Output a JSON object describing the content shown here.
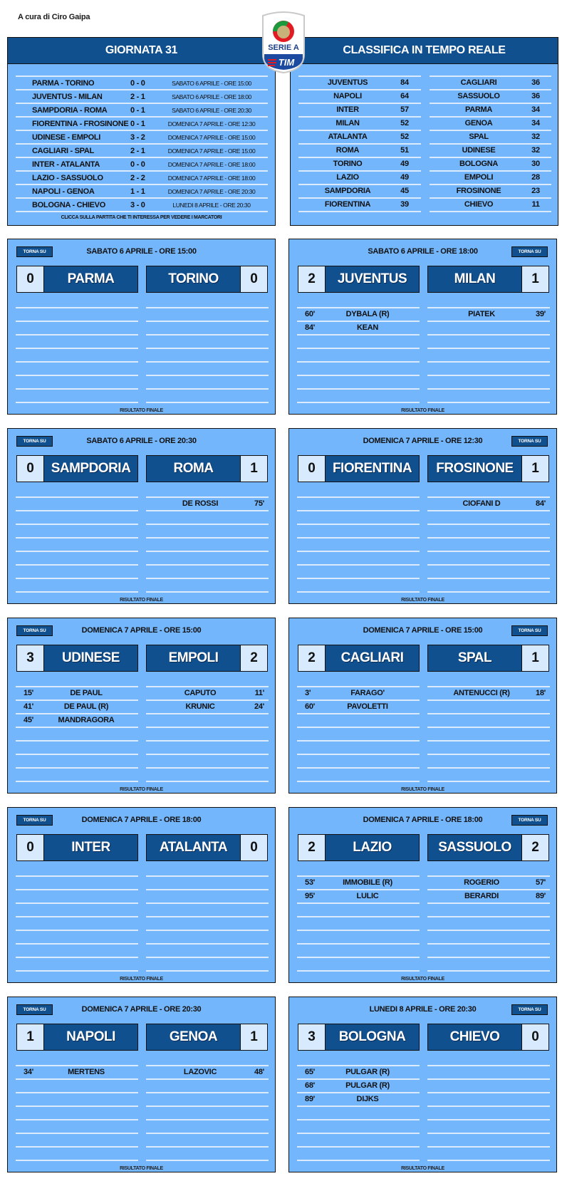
{
  "credit": "A cura di Ciro Gaipa",
  "logo": {
    "line1": "SERIE A",
    "line2": "TIM"
  },
  "colors": {
    "header": "#10508f",
    "panel": "#74b6fc",
    "score_cell": "#d8eafd"
  },
  "giornata": {
    "title": "GIORNATA 31",
    "rows": [
      {
        "match": "PARMA - TORINO",
        "score": "0 - 0",
        "date": "SABATO 6 APRILE - ORE 15:00"
      },
      {
        "match": "JUVENTUS - MILAN",
        "score": "2 - 1",
        "date": "SABATO 6 APRILE - ORE 18:00"
      },
      {
        "match": "SAMPDORIA - ROMA",
        "score": "0 - 1",
        "date": "SABATO 6 APRILE - ORE 20:30"
      },
      {
        "match": "FIORENTINA - FROSINONE",
        "score": "0 - 1",
        "date": "DOMENICA 7 APRILE - ORE 12:30"
      },
      {
        "match": "UDINESE - EMPOLI",
        "score": "3 - 2",
        "date": "DOMENICA 7 APRILE - ORE 15:00"
      },
      {
        "match": "CAGLIARI - SPAL",
        "score": "2 - 1",
        "date": "DOMENICA 7 APRILE - ORE 15:00"
      },
      {
        "match": "INTER - ATALANTA",
        "score": "0 - 0",
        "date": "DOMENICA 7 APRILE - ORE 18:00"
      },
      {
        "match": "LAZIO - SASSUOLO",
        "score": "2 - 2",
        "date": "DOMENICA 7 APRILE - ORE 18:00"
      },
      {
        "match": "NAPOLI - GENOA",
        "score": "1 - 1",
        "date": "DOMENICA 7 APRILE - ORE 20:30"
      },
      {
        "match": "BOLOGNA - CHIEVO",
        "score": "3 - 0",
        "date": "LUNEDI 8 APRILE - ORE 20:30"
      }
    ],
    "hint": "CLICCA SULLA PARTITA CHE TI INTERESSA PER VEDERE I MARCATORI"
  },
  "classifica": {
    "title": "CLASSIFICA IN TEMPO REALE",
    "left": [
      {
        "team": "JUVENTUS",
        "pts": "84"
      },
      {
        "team": "NAPOLI",
        "pts": "64"
      },
      {
        "team": "INTER",
        "pts": "57"
      },
      {
        "team": "MILAN",
        "pts": "52"
      },
      {
        "team": "ATALANTA",
        "pts": "52"
      },
      {
        "team": "ROMA",
        "pts": "51"
      },
      {
        "team": "TORINO",
        "pts": "49"
      },
      {
        "team": "LAZIO",
        "pts": "49"
      },
      {
        "team": "SAMPDORIA",
        "pts": "45"
      },
      {
        "team": "FIORENTINA",
        "pts": "39"
      }
    ],
    "right": [
      {
        "team": "CAGLIARI",
        "pts": "36"
      },
      {
        "team": "SASSUOLO",
        "pts": "36"
      },
      {
        "team": "PARMA",
        "pts": "34"
      },
      {
        "team": "GENOA",
        "pts": "34"
      },
      {
        "team": "SPAL",
        "pts": "32"
      },
      {
        "team": "UDINESE",
        "pts": "32"
      },
      {
        "team": "BOLOGNA",
        "pts": "30"
      },
      {
        "team": "EMPOLI",
        "pts": "28"
      },
      {
        "team": "FROSINONE",
        "pts": "23"
      },
      {
        "team": "CHIEVO",
        "pts": "11"
      }
    ]
  },
  "labels": {
    "torna_su": "TORNA SU",
    "final": "RISULTATO FINALE"
  },
  "matches": [
    {
      "date": "SABATO 6 APRILE - ORE 15:00",
      "home": "PARMA",
      "home_score": "0",
      "away": "TORINO",
      "away_score": "0",
      "home_scorers": [],
      "away_scorers": []
    },
    {
      "date": "SABATO 6 APRILE - ORE 18:00",
      "home": "JUVENTUS",
      "home_score": "2",
      "away": "MILAN",
      "away_score": "1",
      "home_scorers": [
        {
          "min": "60'",
          "name": "DYBALA (R)"
        },
        {
          "min": "84'",
          "name": "KEAN"
        }
      ],
      "away_scorers": [
        {
          "min": "39'",
          "name": "PIATEK"
        }
      ]
    },
    {
      "date": "SABATO 6 APRILE - ORE 20:30",
      "home": "SAMPDORIA",
      "home_score": "0",
      "away": "ROMA",
      "away_score": "1",
      "home_scorers": [],
      "away_scorers": [
        {
          "min": "75'",
          "name": "DE ROSSI"
        }
      ]
    },
    {
      "date": "DOMENICA 7 APRILE - ORE 12:30",
      "home": "FIORENTINA",
      "home_score": "0",
      "away": "FROSINONE",
      "away_score": "1",
      "home_scorers": [],
      "away_scorers": [
        {
          "min": "84'",
          "name": "CIOFANI D"
        }
      ]
    },
    {
      "date": "DOMENICA 7 APRILE - ORE 15:00",
      "home": "UDINESE",
      "home_score": "3",
      "away": "EMPOLI",
      "away_score": "2",
      "home_scorers": [
        {
          "min": "15'",
          "name": "DE PAUL"
        },
        {
          "min": "41'",
          "name": "DE PAUL (R)"
        },
        {
          "min": "45'",
          "name": "MANDRAGORA"
        }
      ],
      "away_scorers": [
        {
          "min": "11'",
          "name": "CAPUTO"
        },
        {
          "min": "24'",
          "name": "KRUNIC"
        }
      ]
    },
    {
      "date": "DOMENICA 7 APRILE - ORE 15:00",
      "home": "CAGLIARI",
      "home_score": "2",
      "away": "SPAL",
      "away_score": "1",
      "home_scorers": [
        {
          "min": "3'",
          "name": "FARAGO'"
        },
        {
          "min": "60'",
          "name": "PAVOLETTI"
        }
      ],
      "away_scorers": [
        {
          "min": "18'",
          "name": "ANTENUCCI (R)"
        }
      ]
    },
    {
      "date": "DOMENICA 7 APRILE - ORE 18:00",
      "home": "INTER",
      "home_score": "0",
      "away": "ATALANTA",
      "away_score": "0",
      "home_scorers": [],
      "away_scorers": []
    },
    {
      "date": "DOMENICA 7 APRILE - ORE 18:00",
      "home": "LAZIO",
      "home_score": "2",
      "away": "SASSUOLO",
      "away_score": "2",
      "home_scorers": [
        {
          "min": "53'",
          "name": "IMMOBILE (R)"
        },
        {
          "min": "95'",
          "name": "LULIC"
        }
      ],
      "away_scorers": [
        {
          "min": "57'",
          "name": "ROGERIO"
        },
        {
          "min": "89'",
          "name": "BERARDI"
        }
      ]
    },
    {
      "date": "DOMENICA 7 APRILE - ORE 20:30",
      "home": "NAPOLI",
      "home_score": "1",
      "away": "GENOA",
      "away_score": "1",
      "home_scorers": [
        {
          "min": "34'",
          "name": "MERTENS"
        }
      ],
      "away_scorers": [
        {
          "min": "48'",
          "name": "LAZOVIC"
        }
      ]
    },
    {
      "date": "LUNEDI 8 APRILE - ORE 20:30",
      "home": "BOLOGNA",
      "home_score": "3",
      "away": "CHIEVO",
      "away_score": "0",
      "home_scorers": [
        {
          "min": "65'",
          "name": "PULGAR (R)"
        },
        {
          "min": "68'",
          "name": "PULGAR (R)"
        },
        {
          "min": "89'",
          "name": "DIJKS"
        }
      ],
      "away_scorers": []
    }
  ]
}
